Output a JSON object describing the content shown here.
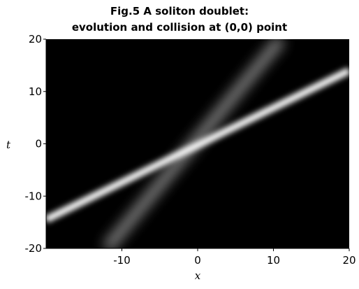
{
  "chart_data": {
    "type": "density",
    "title": [
      "Fig.5 A soliton doublet:",
      "evolution and collision at (0,0) point"
    ],
    "x_label": "x",
    "y_label": "t",
    "background": "#000000",
    "series": [
      {
        "color": "#ffffff",
        "x": [
          -20,
          20
        ],
        "values": [
          -14.5,
          14
        ]
      },
      {
        "color": "#9a9a9a",
        "x": [
          -12,
          11
        ],
        "values": [
          -20,
          20
        ]
      }
    ],
    "xlim": [
      -20,
      20
    ],
    "ylim": [
      -20,
      20
    ],
    "xticks": [
      -10,
      0,
      10,
      20
    ],
    "yticks": [
      -20,
      -10,
      0,
      10,
      20
    ]
  }
}
